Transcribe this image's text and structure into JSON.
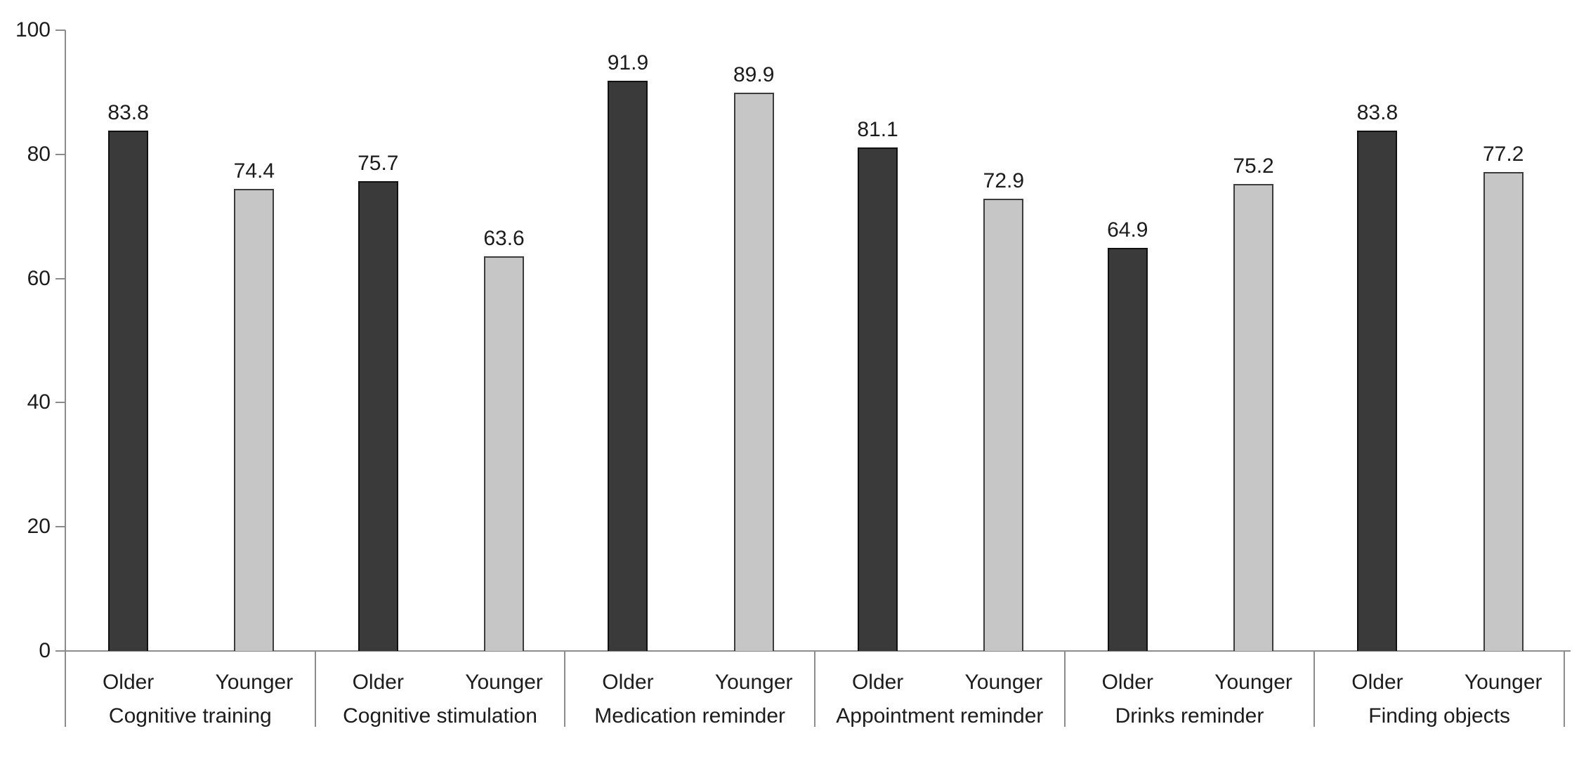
{
  "chart_data": {
    "type": "bar",
    "title": "",
    "groups": [
      "Cognitive training",
      "Cognitive stimulation",
      "Medication reminder",
      "Appointment reminder",
      "Drinks reminder",
      "Finding objects"
    ],
    "bar_labels": [
      "Older",
      "Younger"
    ],
    "series": [
      {
        "name": "Older",
        "fill": "#3a3a3a",
        "border": "#101010",
        "values": [
          83.8,
          75.7,
          91.9,
          81.1,
          64.9,
          83.8
        ]
      },
      {
        "name": "Younger",
        "fill": "#c6c6c6",
        "border": "#3c3c3c",
        "values": [
          74.4,
          63.6,
          89.9,
          72.9,
          75.2,
          77.2
        ]
      }
    ],
    "ylim": [
      0,
      100
    ],
    "yticks": [
      0,
      20,
      40,
      60,
      80,
      100
    ],
    "grid": false,
    "legend_position": "none",
    "axis_color": "#8c8c8c",
    "text_color": "#1c1c1c",
    "background_color": "#ffffff"
  }
}
